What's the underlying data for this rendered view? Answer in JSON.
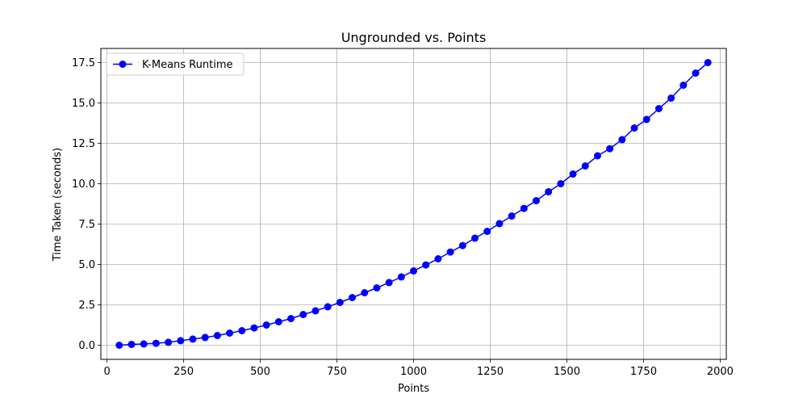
{
  "chart_data": {
    "type": "line",
    "title": "Ungrounded vs. Points",
    "xlabel": "Points",
    "ylabel": "Time Taken (seconds)",
    "xlim": [
      -20,
      2020
    ],
    "ylim": [
      -0.875,
      18.375
    ],
    "xticks": [
      0,
      250,
      500,
      750,
      1000,
      1250,
      1500,
      1750,
      2000
    ],
    "yticks": [
      0.0,
      2.5,
      5.0,
      7.5,
      10.0,
      12.5,
      15.0,
      17.5
    ],
    "xtick_labels": [
      "0",
      "250",
      "500",
      "750",
      "1000",
      "1250",
      "1500",
      "1750",
      "2000"
    ],
    "ytick_labels": [
      "0.0",
      "2.5",
      "5.0",
      "7.5",
      "10.0",
      "12.5",
      "15.0",
      "17.5"
    ],
    "grid": true,
    "legend_position": "top-left",
    "series": [
      {
        "name": "K-Means Runtime",
        "color": "#0000ff",
        "marker": "circle",
        "x": [
          40,
          80,
          120,
          160,
          200,
          240,
          280,
          320,
          360,
          400,
          440,
          480,
          520,
          560,
          600,
          640,
          680,
          720,
          760,
          800,
          840,
          880,
          920,
          960,
          1000,
          1040,
          1080,
          1120,
          1160,
          1200,
          1240,
          1280,
          1320,
          1360,
          1400,
          1440,
          1480,
          1520,
          1560,
          1600,
          1640,
          1680,
          1720,
          1760,
          1800,
          1840,
          1880,
          1920,
          1960
        ],
        "y": [
          0.0,
          0.05,
          0.08,
          0.12,
          0.18,
          0.28,
          0.38,
          0.48,
          0.6,
          0.75,
          0.9,
          1.07,
          1.25,
          1.45,
          1.65,
          1.9,
          2.13,
          2.38,
          2.65,
          2.95,
          3.25,
          3.55,
          3.88,
          4.23,
          4.6,
          4.97,
          5.35,
          5.77,
          6.17,
          6.63,
          7.05,
          7.53,
          8.0,
          8.47,
          8.95,
          9.5,
          10.0,
          10.6,
          11.1,
          11.73,
          12.17,
          12.73,
          13.45,
          13.98,
          14.65,
          15.3,
          16.1,
          16.85,
          17.5
        ]
      }
    ]
  }
}
